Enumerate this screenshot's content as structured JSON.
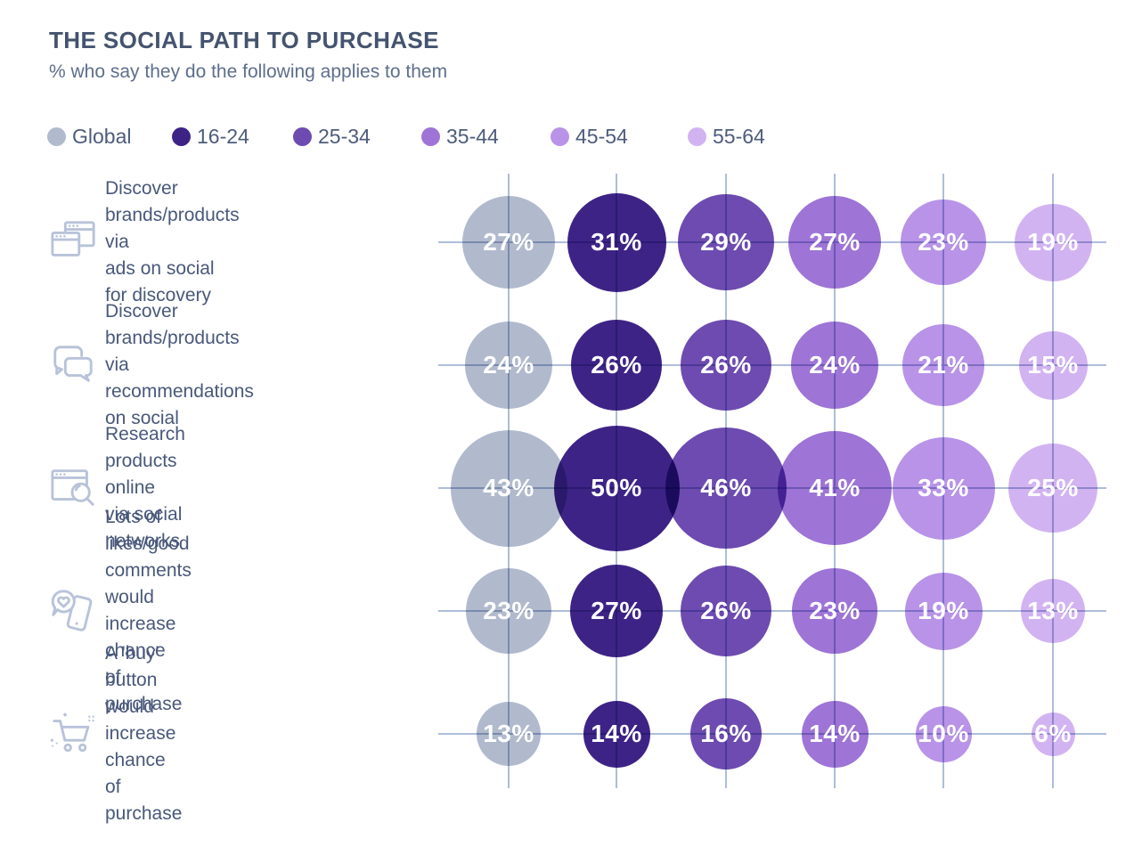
{
  "header": {
    "title": "THE SOCIAL PATH TO PURCHASE",
    "subtitle": "% who say they do the following applies to them"
  },
  "legend": {
    "items": [
      {
        "label": "Global",
        "color": "#b1bacd"
      },
      {
        "label": "16-24",
        "color": "#3e2386"
      },
      {
        "label": "25-34",
        "color": "#6d4bb0"
      },
      {
        "label": "35-44",
        "color": "#9e74d6"
      },
      {
        "label": "45-54",
        "color": "#b893e8"
      },
      {
        "label": "55-64",
        "color": "#d2b3f1"
      }
    ]
  },
  "rows": [
    {
      "icon": "browser-windows-icon",
      "label": "Discover brands/products via\nads on social for discovery"
    },
    {
      "icon": "chat-bubbles-icon",
      "label": "Discover brands/products via\nrecommendations on social"
    },
    {
      "icon": "search-window-icon",
      "label": "Research products online\nvia social networks"
    },
    {
      "icon": "phone-likes-icon",
      "label": "Lots of likes/good comments\nwould increase chance\nof purchase"
    },
    {
      "icon": "buy-cart-icon",
      "label": "A 'buy' button would increase\nchance of purchase"
    }
  ],
  "chart_data": {
    "type": "heatmap",
    "variant": "bubble-grid",
    "title": "THE SOCIAL PATH TO PURCHASE",
    "subtitle": "% who say they do the following applies to them",
    "unit": "%",
    "grid": true,
    "legend_position": "top",
    "categories": [
      "Discover brands/products via ads on social for discovery",
      "Discover brands/products via recommendations on social",
      "Research products online via social networks",
      "Lots of likes/good comments would increase chance of purchase",
      "A 'buy' button would increase chance of purchase"
    ],
    "series": [
      {
        "name": "Global",
        "color": "#b1bacd",
        "values": [
          27,
          24,
          43,
          23,
          13
        ]
      },
      {
        "name": "16-24",
        "color": "#3e2386",
        "values": [
          31,
          26,
          50,
          27,
          14
        ]
      },
      {
        "name": "25-34",
        "color": "#6d4bb0",
        "values": [
          29,
          26,
          46,
          26,
          16
        ]
      },
      {
        "name": "35-44",
        "color": "#9e74d6",
        "values": [
          27,
          24,
          41,
          23,
          14
        ]
      },
      {
        "name": "45-54",
        "color": "#b893e8",
        "values": [
          23,
          21,
          33,
          19,
          10
        ]
      },
      {
        "name": "55-64",
        "color": "#d2b3f1",
        "values": [
          19,
          15,
          25,
          13,
          6
        ]
      }
    ]
  },
  "colors": {
    "grid_line": "#aebdd9",
    "title_text": "#44536e",
    "subtitle_text": "#5e6e8d",
    "row_label_text": "#49587a",
    "bubble_value_text": "#ffffff",
    "icon_stroke": "#b8c3da"
  }
}
